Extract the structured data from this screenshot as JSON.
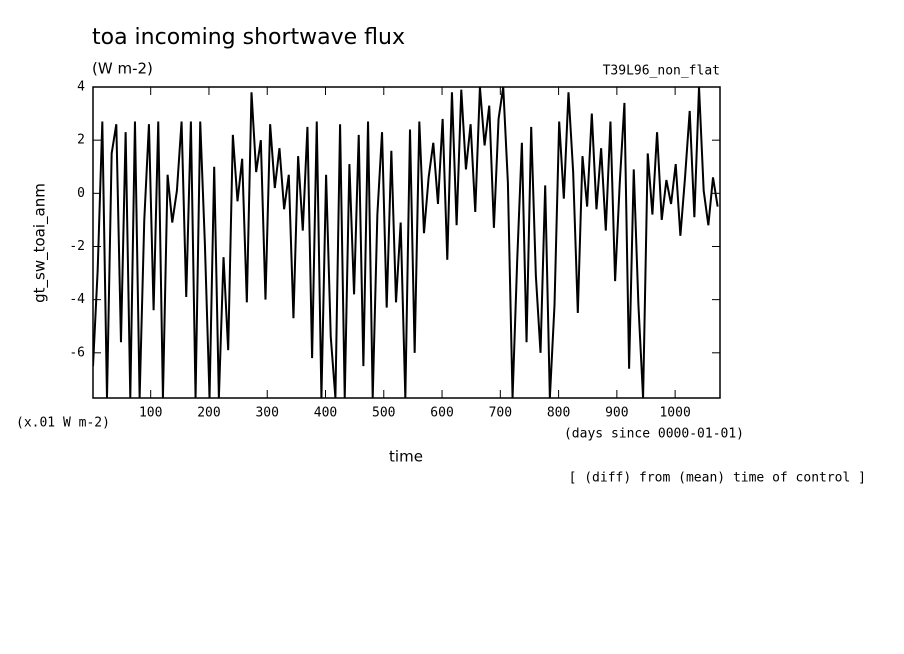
{
  "chart_data": {
    "type": "line",
    "title": "toa incoming shortwave flux",
    "subtitle": "(W m-2)",
    "run_label": "T39L96_non_flat",
    "y_label": "gt_sw_toai_anm",
    "y_unit_label": "(x.01 W m-2)",
    "x_label": "time",
    "x_unit_label": "(days since 0000-01-01)",
    "footnote": "[ (diff) from (mean) time of control ]",
    "xlim": [
      1,
      1077
    ],
    "ylim": [
      -7.7,
      4
    ],
    "xticks": [
      100,
      200,
      300,
      400,
      500,
      600,
      700,
      800,
      900,
      1000
    ],
    "yticks": [
      -6,
      -4,
      -2,
      0,
      2,
      4
    ],
    "grid": false,
    "x": [
      1,
      9,
      17,
      25,
      33,
      41,
      49,
      57,
      65,
      73,
      81,
      89,
      97,
      105,
      113,
      121,
      129,
      137,
      145,
      153,
      161,
      169,
      177,
      185,
      193,
      201,
      209,
      217,
      225,
      233,
      241,
      249,
      257,
      265,
      273,
      281,
      289,
      297,
      305,
      313,
      321,
      329,
      337,
      345,
      353,
      361,
      369,
      377,
      385,
      393,
      401,
      409,
      417,
      425,
      433,
      441,
      449,
      457,
      465,
      473,
      481,
      489,
      497,
      505,
      513,
      521,
      529,
      537,
      545,
      553,
      561,
      569,
      577,
      585,
      593,
      601,
      609,
      617,
      625,
      633,
      641,
      649,
      657,
      665,
      673,
      681,
      689,
      697,
      705,
      713,
      721,
      729,
      737,
      745,
      753,
      761,
      769,
      777,
      785,
      793,
      801,
      809,
      817,
      825,
      833,
      841,
      849,
      857,
      865,
      873,
      881,
      889,
      897,
      905,
      913,
      921,
      929,
      937,
      945,
      953,
      961,
      969,
      977,
      985,
      993,
      1001,
      1009,
      1017,
      1025,
      1033,
      1041,
      1049,
      1057,
      1065,
      1073
    ],
    "series": [
      {
        "color": "#000000",
        "values": [
          -6.5,
          -2.9,
          2.7,
          -7.7,
          1.5,
          2.6,
          -5.6,
          2.3,
          -7.7,
          2.7,
          -7.7,
          -1.0,
          2.6,
          -4.4,
          2.7,
          -7.7,
          0.7,
          -1.1,
          0.1,
          2.7,
          -3.9,
          2.7,
          -7.7,
          2.7,
          -1.9,
          -7.7,
          1.0,
          -7.7,
          -2.4,
          -5.9,
          2.2,
          -0.3,
          1.3,
          -4.1,
          3.8,
          0.8,
          2.0,
          -4.0,
          2.6,
          0.2,
          1.7,
          -0.6,
          0.7,
          -4.7,
          1.4,
          -1.4,
          2.5,
          -6.2,
          2.7,
          -7.7,
          0.7,
          -5.4,
          -7.7,
          2.6,
          -7.7,
          1.1,
          -3.8,
          2.2,
          -6.5,
          2.7,
          -7.7,
          -0.8,
          2.3,
          -4.3,
          1.6,
          -4.1,
          -1.1,
          -7.7,
          2.4,
          -6.0,
          2.7,
          -1.5,
          0.6,
          1.9,
          -0.4,
          2.8,
          -2.5,
          3.8,
          -1.2,
          3.9,
          0.9,
          2.6,
          -0.7,
          4.0,
          1.8,
          3.3,
          -1.3,
          2.8,
          4.0,
          0.4,
          -7.7,
          -2.5,
          1.9,
          -5.6,
          2.5,
          -3.1,
          -6.0,
          0.3,
          -7.7,
          -4.2,
          2.7,
          -0.2,
          3.8,
          0.8,
          -4.5,
          1.4,
          -0.5,
          3.0,
          -0.6,
          1.7,
          -1.4,
          2.7,
          -3.3,
          0.4,
          3.4,
          -6.6,
          0.9,
          -4.2,
          -7.7,
          1.5,
          -0.8,
          2.3,
          -1.0,
          0.5,
          -0.4,
          1.1,
          -1.6,
          0.6,
          3.1,
          -0.9,
          4.0,
          0.1,
          -1.2,
          0.6,
          -0.5
        ]
      }
    ]
  }
}
